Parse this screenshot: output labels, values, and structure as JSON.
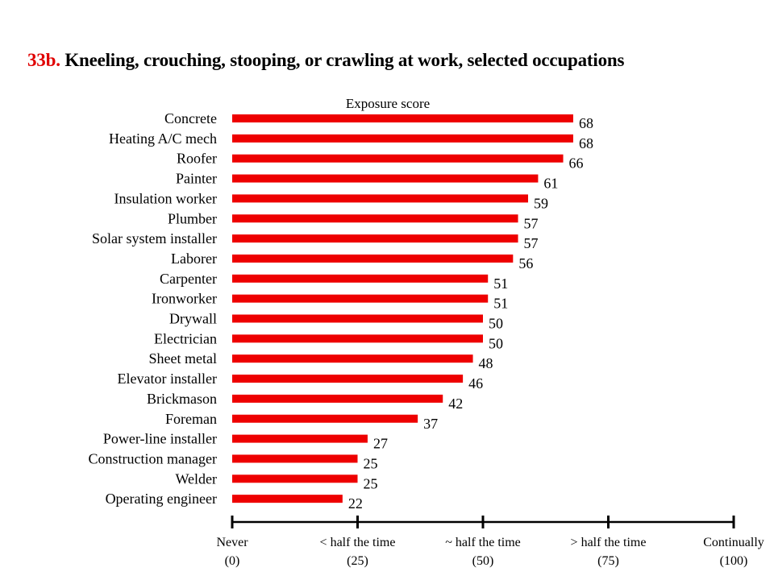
{
  "title_number": "33b.",
  "title_text": "Kneeling, crouching, stooping, or crawling at work, selected occupations",
  "colors": {
    "bar": "#ee0000",
    "title_number": "#e00000",
    "axis": "#000000"
  },
  "chart_data": {
    "type": "bar",
    "orientation": "horizontal",
    "xlabel": "Exposure score",
    "xlim": [
      0,
      100
    ],
    "categories": [
      "Concrete",
      "Heating A/C mech",
      "Roofer",
      "Painter",
      "Insulation worker",
      "Plumber",
      "Solar system installer",
      "Laborer",
      "Carpenter",
      "Ironworker",
      "Drywall",
      "Electrician",
      "Sheet metal",
      "Elevator installer",
      "Brickmason",
      "Foreman",
      "Power-line installer",
      "Construction manager",
      "Welder",
      "Operating engineer"
    ],
    "values": [
      68,
      68,
      66,
      61,
      59,
      57,
      57,
      56,
      51,
      51,
      50,
      50,
      48,
      46,
      42,
      37,
      27,
      25,
      25,
      22
    ],
    "x_ticks": [
      {
        "value": 0,
        "label": "Never",
        "sub": "(0)"
      },
      {
        "value": 25,
        "label": "< half the time",
        "sub": "(25)"
      },
      {
        "value": 50,
        "label": "~ half the time",
        "sub": "(50)"
      },
      {
        "value": 75,
        "label": "> half the time",
        "sub": "(75)"
      },
      {
        "value": 100,
        "label": "Continually",
        "sub": "(100)"
      }
    ],
    "grid": false,
    "legend": "none"
  }
}
